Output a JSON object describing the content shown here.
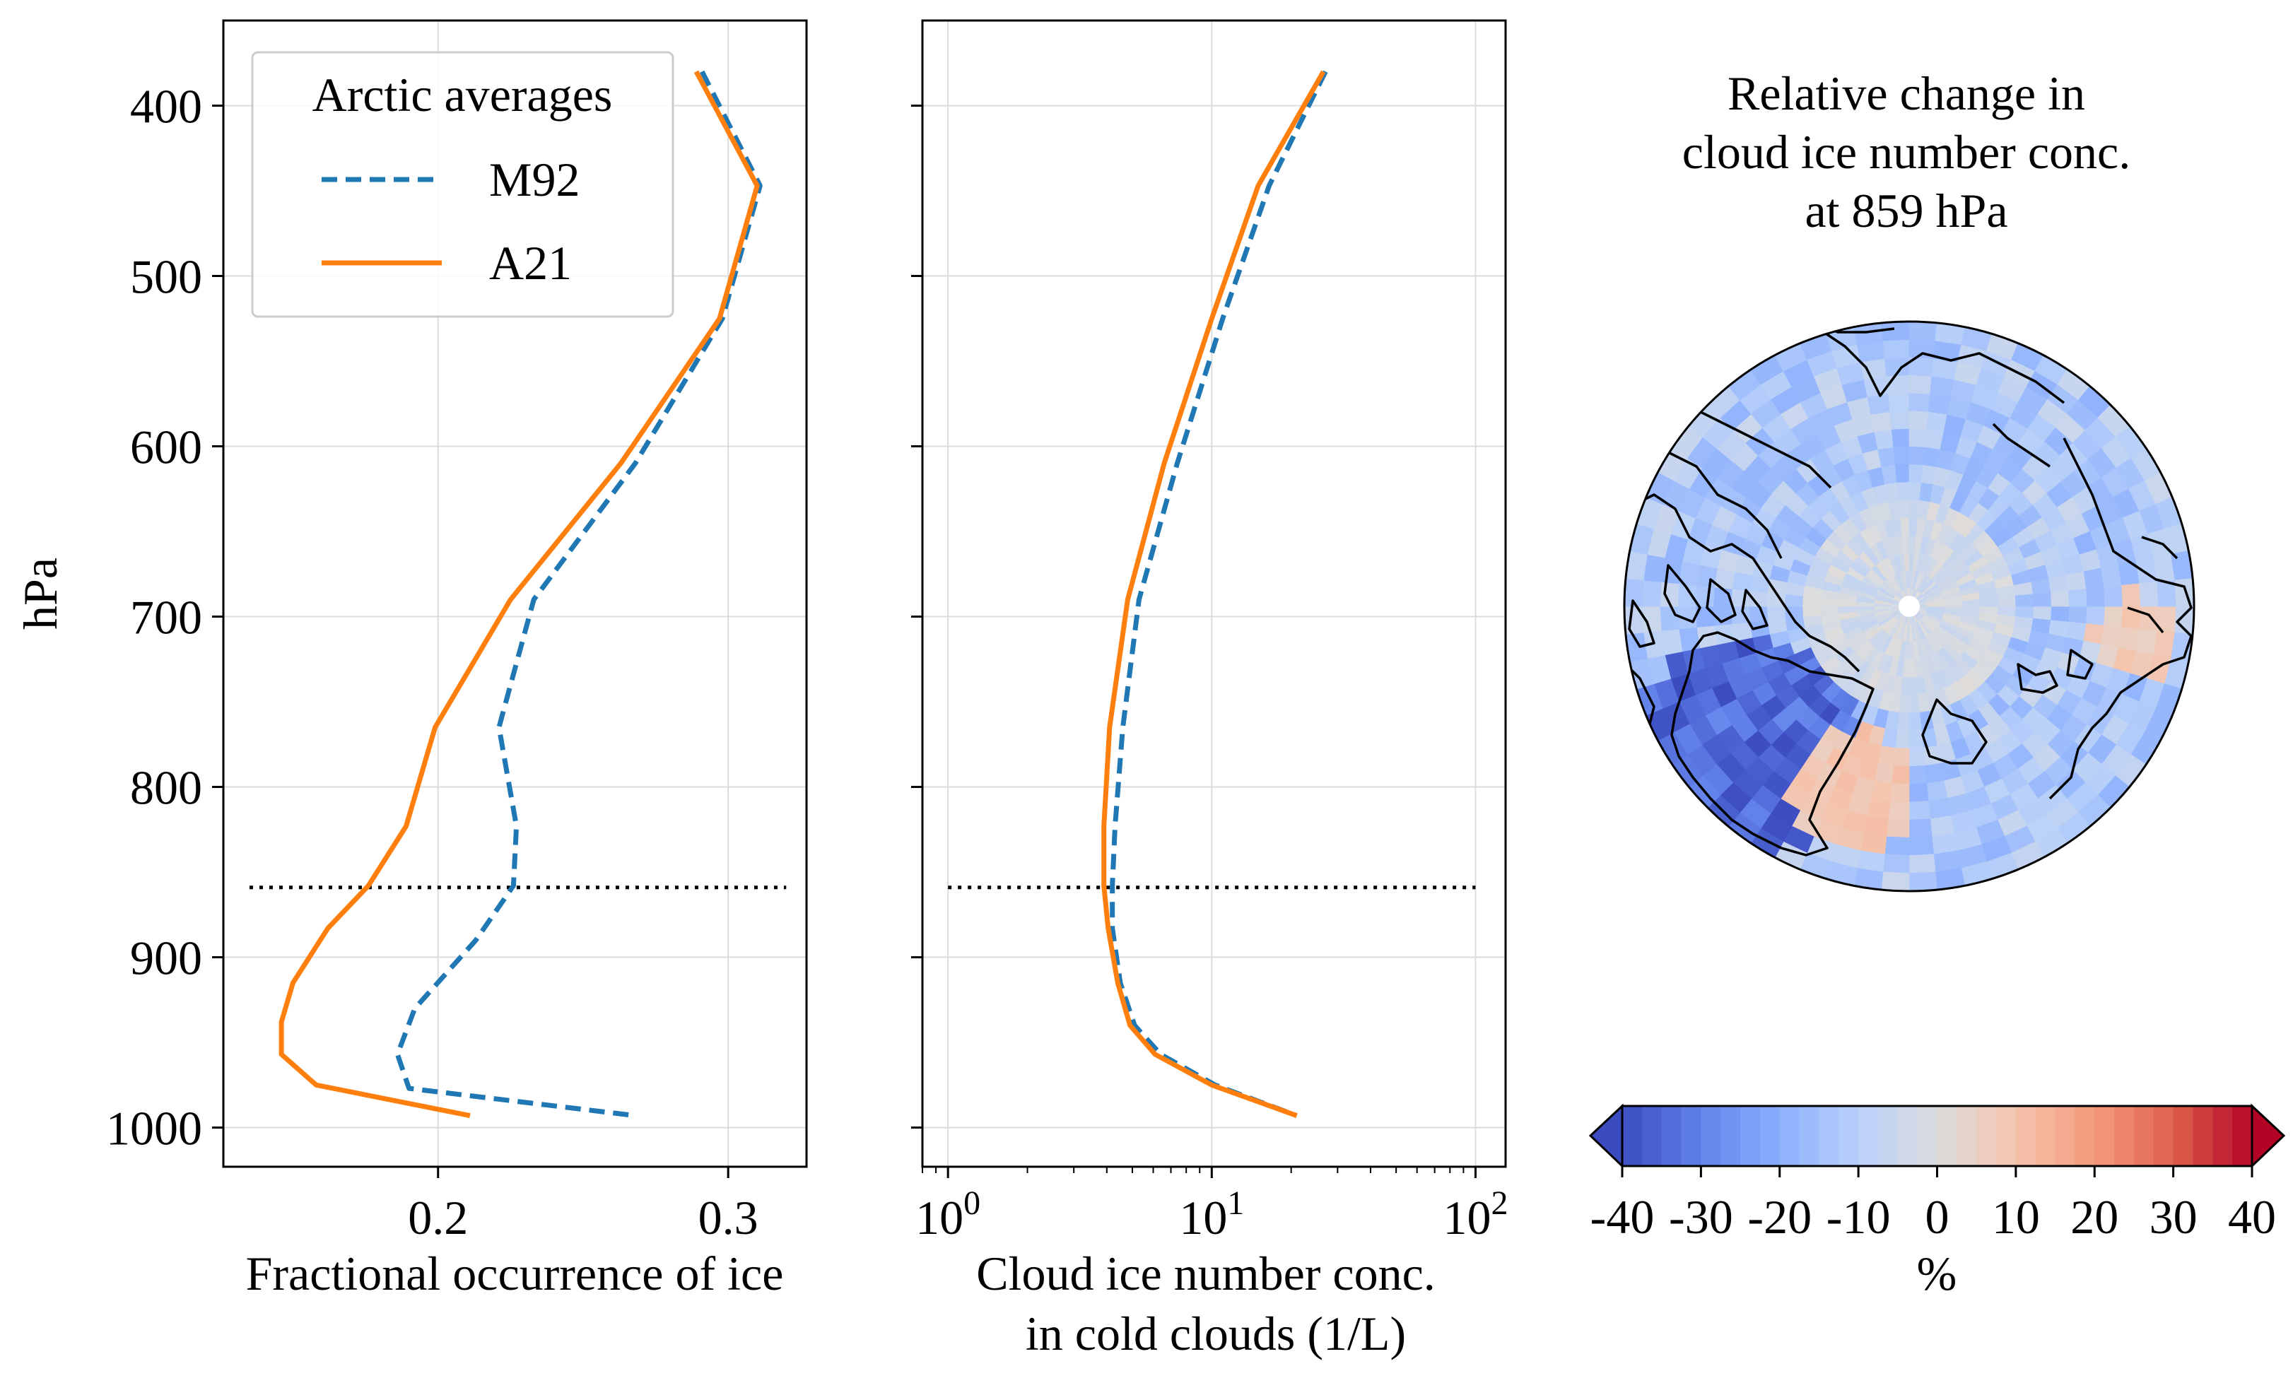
{
  "chart_data": [
    {
      "type": "line",
      "ylabel": "hPa",
      "xlabel": "Fractional occurrence of ice",
      "xlim": [
        0.126,
        0.327
      ],
      "ylim": [
        1023,
        350
      ],
      "yticks": [
        400,
        500,
        600,
        700,
        800,
        900,
        1000
      ],
      "xticks": [
        0.2,
        0.3
      ],
      "grid": true,
      "legend": {
        "title": "Arctic averages",
        "placement": "top-left"
      },
      "reference_line_p": 859,
      "series": [
        {
          "name": "M92",
          "color": "#1f77b4",
          "style": "dashed",
          "x": [
            0.291,
            0.311,
            0.298,
            0.268,
            0.233,
            0.221,
            0.227,
            0.226,
            0.213,
            0.192,
            0.186,
            0.19,
            0.268
          ],
          "p": [
            380,
            447,
            525,
            610,
            690,
            765,
            823,
            858,
            890,
            930,
            957,
            977,
            993
          ]
        },
        {
          "name": "A21",
          "color": "#ff7f0e",
          "style": "solid",
          "x": [
            0.289,
            0.31,
            0.297,
            0.263,
            0.225,
            0.199,
            0.189,
            0.176,
            0.162,
            0.15,
            0.146,
            0.146,
            0.158,
            0.211
          ],
          "p": [
            380,
            447,
            525,
            610,
            690,
            765,
            823,
            858,
            883,
            915,
            938,
            957,
            975,
            993
          ]
        }
      ]
    },
    {
      "type": "line",
      "xlabel_lines": [
        "Cloud ice number conc.",
        "in cold clouds (1/L)"
      ],
      "xscale": "log",
      "xlim": [
        0.8,
        130
      ],
      "ylim": [
        1023,
        350
      ],
      "xtick_labels": [
        {
          "base": "10",
          "exp": "0",
          "value": 1
        },
        {
          "base": "10",
          "exp": "1",
          "value": 10
        },
        {
          "base": "10",
          "exp": "2",
          "value": 100
        }
      ],
      "grid": true,
      "reference_line_p": 859,
      "series": [
        {
          "name": "M92",
          "color": "#1f77b4",
          "style": "dashed",
          "x": [
            27.0,
            16.5,
            11.0,
            7.4,
            5.3,
            4.6,
            4.3,
            4.2,
            4.2,
            4.5,
            5.1,
            6.4,
            10.3,
            21.0
          ],
          "p": [
            380,
            447,
            525,
            610,
            690,
            765,
            823,
            858,
            883,
            915,
            940,
            957,
            975,
            993
          ]
        },
        {
          "name": "A21",
          "color": "#ff7f0e",
          "style": "solid",
          "x": [
            26.5,
            15.0,
            10.0,
            6.6,
            4.8,
            4.1,
            3.9,
            3.9,
            4.05,
            4.4,
            4.9,
            6.1,
            10.0,
            21.0
          ],
          "p": [
            380,
            447,
            525,
            610,
            690,
            765,
            823,
            858,
            883,
            915,
            940,
            957,
            975,
            993
          ]
        }
      ]
    },
    {
      "type": "heatmap",
      "projection": "north-polar-stereographic",
      "title_lines": [
        "Relative change in",
        "cloud ice number conc.",
        "at 859 hPa"
      ],
      "colorbar": {
        "label": "%",
        "range": [
          -40,
          40
        ],
        "ticks": [
          -40,
          -30,
          -20,
          -10,
          0,
          10,
          20,
          30,
          40
        ],
        "colormap": "coolwarm",
        "extend": "both",
        "orientation": "horizontal"
      },
      "dominant_values": "mostly -5 to -20 %, strongest decreases (about -30 to -40 %) over Greenland, small increases (0 to +10 %) over the central Arctic and near Scandinavia"
    }
  ]
}
